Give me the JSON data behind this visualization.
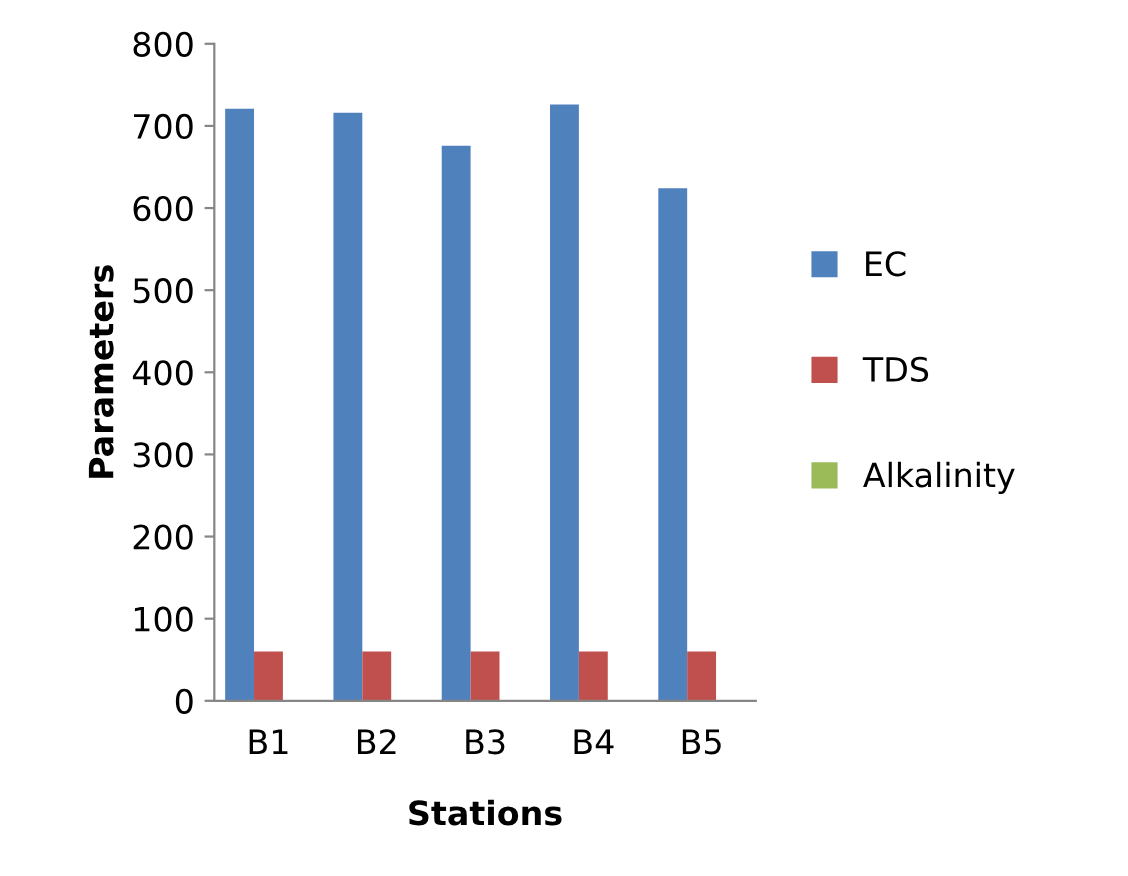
{
  "chart_data": {
    "type": "bar",
    "xlabel": "Stations",
    "ylabel": "Parameters",
    "categories": [
      "B1",
      "B2",
      "B3",
      "B4",
      "B5"
    ],
    "series": [
      {
        "name": "EC",
        "color": "#4f81bd",
        "values": [
          721,
          716,
          676,
          726,
          624
        ]
      },
      {
        "name": "TDS",
        "color": "#c0504d",
        "values": [
          60,
          60,
          60,
          60,
          60
        ]
      },
      {
        "name": "Alkalinity",
        "color": "#9bbb59",
        "values": [
          0,
          0,
          0,
          0,
          0
        ]
      }
    ],
    "ylim": [
      0,
      800
    ],
    "yticks": [
      0,
      100,
      200,
      300,
      400,
      500,
      600,
      700,
      800
    ],
    "grid": false,
    "legend": "right"
  }
}
